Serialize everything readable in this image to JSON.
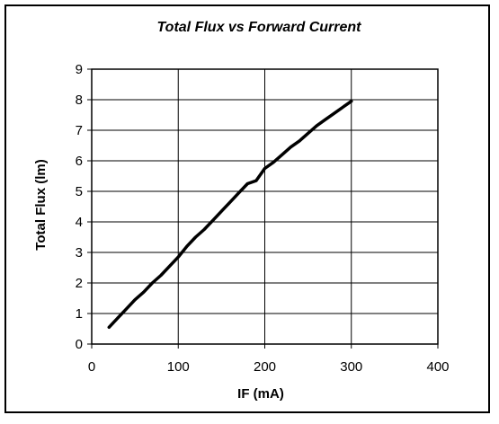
{
  "chart_data": {
    "type": "line",
    "title": "Total Flux vs Forward Current",
    "xlabel": "IF (mA)",
    "ylabel": "Total Flux (lm)",
    "xlim": [
      0,
      400
    ],
    "ylim": [
      0,
      9
    ],
    "xticks": [
      0,
      100,
      200,
      300,
      400
    ],
    "yticks": [
      0,
      1,
      2,
      3,
      4,
      5,
      6,
      7,
      8,
      9
    ],
    "grid": true,
    "legend": "none",
    "line_color": "#000000",
    "series": [
      {
        "x": [
          20,
          30,
          40,
          50,
          60,
          70,
          80,
          90,
          100,
          110,
          120,
          130,
          140,
          150,
          160,
          170,
          180,
          190,
          200,
          210,
          220,
          230,
          240,
          250,
          260,
          270,
          280,
          290,
          300
        ],
        "values": [
          0.55,
          0.85,
          1.15,
          1.45,
          1.7,
          2.0,
          2.25,
          2.55,
          2.85,
          3.2,
          3.5,
          3.75,
          4.05,
          4.35,
          4.65,
          4.95,
          5.25,
          5.35,
          5.75,
          5.95,
          6.2,
          6.45,
          6.65,
          6.9,
          7.15,
          7.35,
          7.55,
          7.75,
          7.95
        ]
      }
    ]
  }
}
